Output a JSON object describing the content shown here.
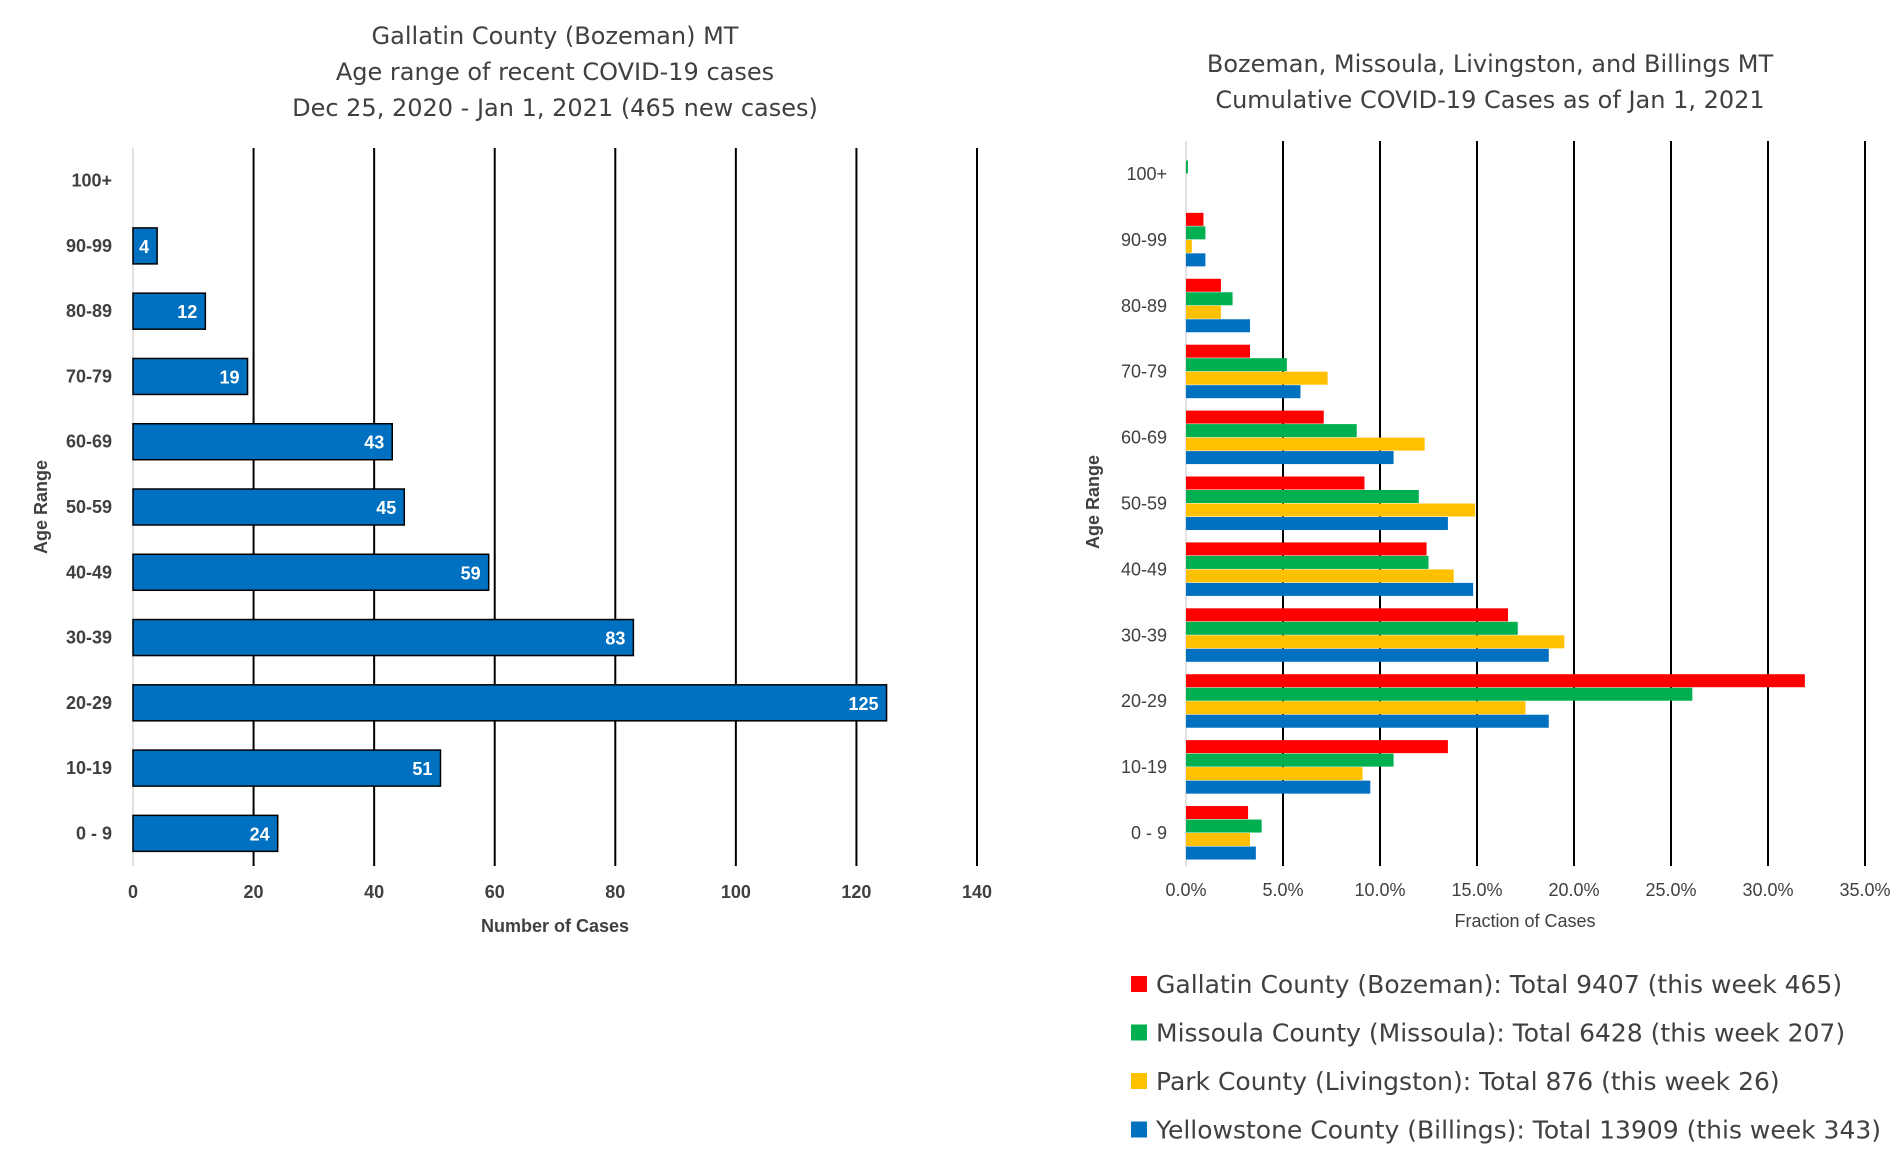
{
  "chart_data": [
    {
      "type": "bar",
      "orientation": "horizontal",
      "title_lines": [
        "Gallatin County (Bozeman) MT",
        "Age range of recent COVID-19 cases",
        "Dec 25, 2020 - Jan 1, 2021 (465 new cases)"
      ],
      "xlabel": "Number of Cases",
      "ylabel": "Age Range",
      "categories": [
        "0 - 9",
        "10-19",
        "20-29",
        "30-39",
        "40-49",
        "50-59",
        "60-69",
        "70-79",
        "80-89",
        "90-99",
        "100+"
      ],
      "values": [
        24,
        51,
        125,
        83,
        59,
        45,
        43,
        19,
        12,
        4,
        null
      ],
      "xlim": [
        0,
        140
      ],
      "x_ticks": [
        "0",
        "20",
        "40",
        "60",
        "80",
        "100",
        "120",
        "140"
      ],
      "grid": "vertical",
      "bar_color": "#0070C0"
    },
    {
      "type": "bar",
      "orientation": "horizontal",
      "title_lines": [
        "Bozeman, Missoula, Livingston, and Billings MT",
        "Cumulative COVID-19 Cases as of Jan 1, 2021"
      ],
      "xlabel": "Fraction of Cases",
      "ylabel": "Age Range",
      "categories": [
        "0 - 9",
        "10-19",
        "20-29",
        "30-39",
        "40-49",
        "50-59",
        "60-69",
        "70-79",
        "80-89",
        "90-99",
        "100+"
      ],
      "xlim": [
        0,
        0.35
      ],
      "x_ticks": [
        "0.0%",
        "5.0%",
        "10.0%",
        "15.0%",
        "20.0%",
        "25.0%",
        "30.0%",
        "35.0%"
      ],
      "grid": "vertical",
      "legend_position": "bottom",
      "series": [
        {
          "name": "Gallatin County (Bozeman): Total 9407 (this week 465)",
          "color": "#FF0000",
          "values": [
            0.032,
            0.135,
            0.319,
            0.166,
            0.124,
            0.092,
            0.071,
            0.033,
            0.018,
            0.009,
            0.0
          ]
        },
        {
          "name": "Missoula County (Missoula): Total 6428 (this week 207)",
          "color": "#00B050",
          "values": [
            0.039,
            0.107,
            0.261,
            0.171,
            0.125,
            0.12,
            0.088,
            0.052,
            0.024,
            0.01,
            0.001
          ]
        },
        {
          "name": "Park County (Livingston): Total 876 (this week 26)",
          "color": "#FFC000",
          "values": [
            0.033,
            0.091,
            0.175,
            0.195,
            0.138,
            0.149,
            0.123,
            0.073,
            0.018,
            0.003,
            0.0
          ]
        },
        {
          "name": "Yellowstone County (Billings): Total 13909 (this week 343)",
          "color": "#0070C0",
          "values": [
            0.036,
            0.095,
            0.187,
            0.187,
            0.148,
            0.135,
            0.107,
            0.059,
            0.033,
            0.01,
            0.0
          ]
        }
      ]
    }
  ]
}
